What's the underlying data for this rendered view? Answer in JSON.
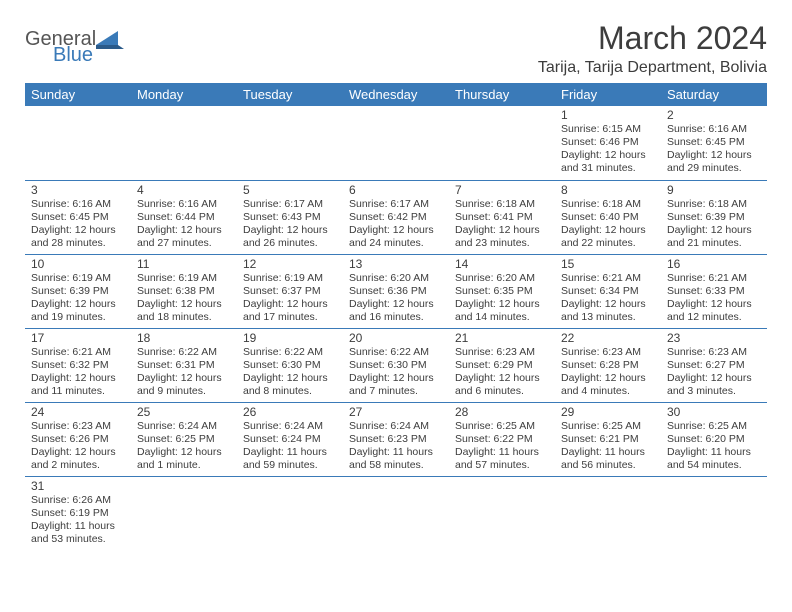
{
  "logo": {
    "general": "General",
    "blue": "Blue"
  },
  "title": "March 2024",
  "location": "Tarija, Tarija Department, Bolivia",
  "colors": {
    "header_bg": "#3a7ab8",
    "text": "#3d3d3d",
    "border": "#3a7ab8",
    "bg": "#ffffff"
  },
  "headers": [
    "Sunday",
    "Monday",
    "Tuesday",
    "Wednesday",
    "Thursday",
    "Friday",
    "Saturday"
  ],
  "weeks": [
    [
      null,
      null,
      null,
      null,
      null,
      {
        "d": "1",
        "sr": "Sunrise: 6:15 AM",
        "ss": "Sunset: 6:46 PM",
        "dl1": "Daylight: 12 hours",
        "dl2": "and 31 minutes."
      },
      {
        "d": "2",
        "sr": "Sunrise: 6:16 AM",
        "ss": "Sunset: 6:45 PM",
        "dl1": "Daylight: 12 hours",
        "dl2": "and 29 minutes."
      }
    ],
    [
      {
        "d": "3",
        "sr": "Sunrise: 6:16 AM",
        "ss": "Sunset: 6:45 PM",
        "dl1": "Daylight: 12 hours",
        "dl2": "and 28 minutes."
      },
      {
        "d": "4",
        "sr": "Sunrise: 6:16 AM",
        "ss": "Sunset: 6:44 PM",
        "dl1": "Daylight: 12 hours",
        "dl2": "and 27 minutes."
      },
      {
        "d": "5",
        "sr": "Sunrise: 6:17 AM",
        "ss": "Sunset: 6:43 PM",
        "dl1": "Daylight: 12 hours",
        "dl2": "and 26 minutes."
      },
      {
        "d": "6",
        "sr": "Sunrise: 6:17 AM",
        "ss": "Sunset: 6:42 PM",
        "dl1": "Daylight: 12 hours",
        "dl2": "and 24 minutes."
      },
      {
        "d": "7",
        "sr": "Sunrise: 6:18 AM",
        "ss": "Sunset: 6:41 PM",
        "dl1": "Daylight: 12 hours",
        "dl2": "and 23 minutes."
      },
      {
        "d": "8",
        "sr": "Sunrise: 6:18 AM",
        "ss": "Sunset: 6:40 PM",
        "dl1": "Daylight: 12 hours",
        "dl2": "and 22 minutes."
      },
      {
        "d": "9",
        "sr": "Sunrise: 6:18 AM",
        "ss": "Sunset: 6:39 PM",
        "dl1": "Daylight: 12 hours",
        "dl2": "and 21 minutes."
      }
    ],
    [
      {
        "d": "10",
        "sr": "Sunrise: 6:19 AM",
        "ss": "Sunset: 6:39 PM",
        "dl1": "Daylight: 12 hours",
        "dl2": "and 19 minutes."
      },
      {
        "d": "11",
        "sr": "Sunrise: 6:19 AM",
        "ss": "Sunset: 6:38 PM",
        "dl1": "Daylight: 12 hours",
        "dl2": "and 18 minutes."
      },
      {
        "d": "12",
        "sr": "Sunrise: 6:19 AM",
        "ss": "Sunset: 6:37 PM",
        "dl1": "Daylight: 12 hours",
        "dl2": "and 17 minutes."
      },
      {
        "d": "13",
        "sr": "Sunrise: 6:20 AM",
        "ss": "Sunset: 6:36 PM",
        "dl1": "Daylight: 12 hours",
        "dl2": "and 16 minutes."
      },
      {
        "d": "14",
        "sr": "Sunrise: 6:20 AM",
        "ss": "Sunset: 6:35 PM",
        "dl1": "Daylight: 12 hours",
        "dl2": "and 14 minutes."
      },
      {
        "d": "15",
        "sr": "Sunrise: 6:21 AM",
        "ss": "Sunset: 6:34 PM",
        "dl1": "Daylight: 12 hours",
        "dl2": "and 13 minutes."
      },
      {
        "d": "16",
        "sr": "Sunrise: 6:21 AM",
        "ss": "Sunset: 6:33 PM",
        "dl1": "Daylight: 12 hours",
        "dl2": "and 12 minutes."
      }
    ],
    [
      {
        "d": "17",
        "sr": "Sunrise: 6:21 AM",
        "ss": "Sunset: 6:32 PM",
        "dl1": "Daylight: 12 hours",
        "dl2": "and 11 minutes."
      },
      {
        "d": "18",
        "sr": "Sunrise: 6:22 AM",
        "ss": "Sunset: 6:31 PM",
        "dl1": "Daylight: 12 hours",
        "dl2": "and 9 minutes."
      },
      {
        "d": "19",
        "sr": "Sunrise: 6:22 AM",
        "ss": "Sunset: 6:30 PM",
        "dl1": "Daylight: 12 hours",
        "dl2": "and 8 minutes."
      },
      {
        "d": "20",
        "sr": "Sunrise: 6:22 AM",
        "ss": "Sunset: 6:30 PM",
        "dl1": "Daylight: 12 hours",
        "dl2": "and 7 minutes."
      },
      {
        "d": "21",
        "sr": "Sunrise: 6:23 AM",
        "ss": "Sunset: 6:29 PM",
        "dl1": "Daylight: 12 hours",
        "dl2": "and 6 minutes."
      },
      {
        "d": "22",
        "sr": "Sunrise: 6:23 AM",
        "ss": "Sunset: 6:28 PM",
        "dl1": "Daylight: 12 hours",
        "dl2": "and 4 minutes."
      },
      {
        "d": "23",
        "sr": "Sunrise: 6:23 AM",
        "ss": "Sunset: 6:27 PM",
        "dl1": "Daylight: 12 hours",
        "dl2": "and 3 minutes."
      }
    ],
    [
      {
        "d": "24",
        "sr": "Sunrise: 6:23 AM",
        "ss": "Sunset: 6:26 PM",
        "dl1": "Daylight: 12 hours",
        "dl2": "and 2 minutes."
      },
      {
        "d": "25",
        "sr": "Sunrise: 6:24 AM",
        "ss": "Sunset: 6:25 PM",
        "dl1": "Daylight: 12 hours",
        "dl2": "and 1 minute."
      },
      {
        "d": "26",
        "sr": "Sunrise: 6:24 AM",
        "ss": "Sunset: 6:24 PM",
        "dl1": "Daylight: 11 hours",
        "dl2": "and 59 minutes."
      },
      {
        "d": "27",
        "sr": "Sunrise: 6:24 AM",
        "ss": "Sunset: 6:23 PM",
        "dl1": "Daylight: 11 hours",
        "dl2": "and 58 minutes."
      },
      {
        "d": "28",
        "sr": "Sunrise: 6:25 AM",
        "ss": "Sunset: 6:22 PM",
        "dl1": "Daylight: 11 hours",
        "dl2": "and 57 minutes."
      },
      {
        "d": "29",
        "sr": "Sunrise: 6:25 AM",
        "ss": "Sunset: 6:21 PM",
        "dl1": "Daylight: 11 hours",
        "dl2": "and 56 minutes."
      },
      {
        "d": "30",
        "sr": "Sunrise: 6:25 AM",
        "ss": "Sunset: 6:20 PM",
        "dl1": "Daylight: 11 hours",
        "dl2": "and 54 minutes."
      }
    ],
    [
      {
        "d": "31",
        "sr": "Sunrise: 6:26 AM",
        "ss": "Sunset: 6:19 PM",
        "dl1": "Daylight: 11 hours",
        "dl2": "and 53 minutes."
      },
      null,
      null,
      null,
      null,
      null,
      null
    ]
  ]
}
